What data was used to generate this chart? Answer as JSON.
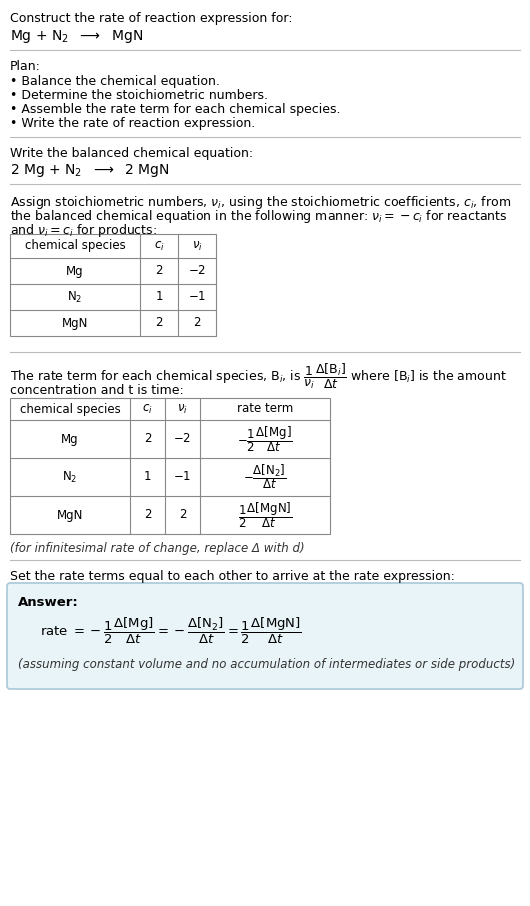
{
  "bg_color": "#ffffff",
  "answer_bg_color": "#e8f4f8",
  "answer_border_color": "#a8c8d8",
  "title_text": "Construct the rate of reaction expression for:",
  "plan_header": "Plan:",
  "plan_items": [
    "• Balance the chemical equation.",
    "• Determine the stoichiometric numbers.",
    "• Assemble the rate term for each chemical species.",
    "• Write the rate of reaction expression."
  ],
  "balanced_header": "Write the balanced chemical equation:",
  "infinitesimal_note": "(for infinitesimal rate of change, replace Δ with d)",
  "set_rate_text": "Set the rate terms equal to each other to arrive at the rate expression:",
  "answer_label": "Answer:",
  "assumption_note": "(assuming constant volume and no accumulation of intermediates or side products)"
}
